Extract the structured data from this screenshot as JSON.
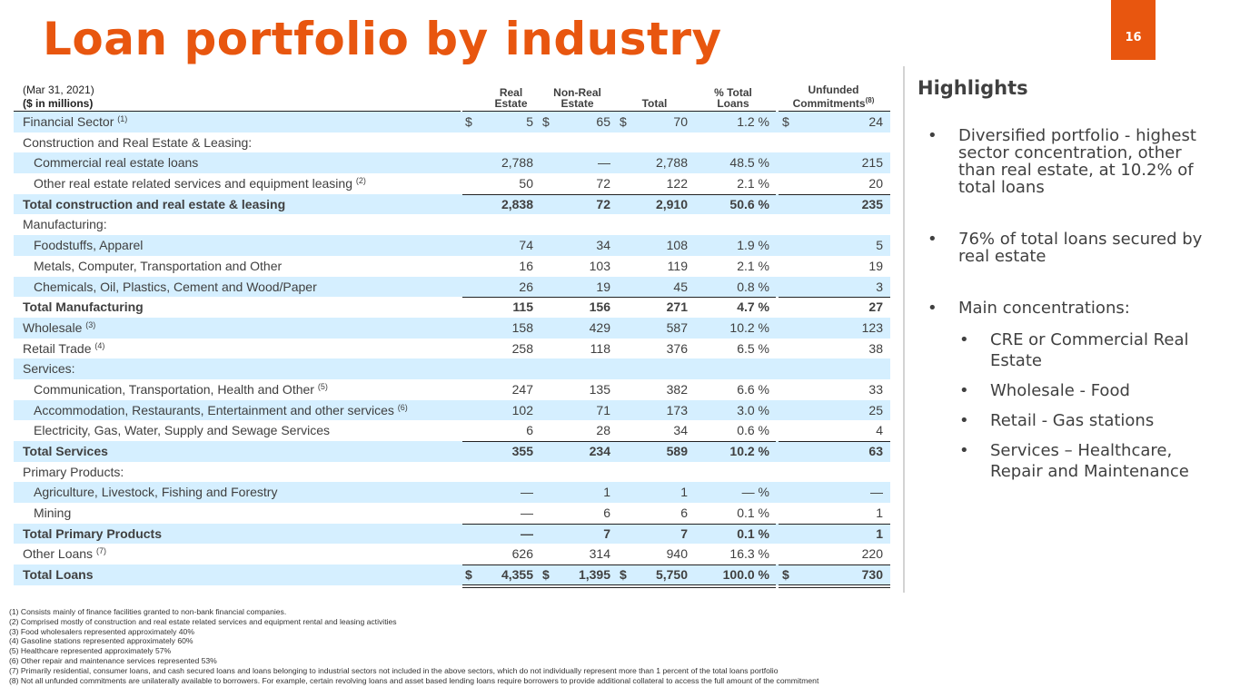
{
  "title": "Loan portfolio by industry",
  "page_number": "16",
  "table": {
    "date": "(Mar 31, 2021)",
    "units": "($ in millions)",
    "columns": {
      "real_estate_1": "Real",
      "real_estate_2": "Estate",
      "non_real_1": "Non-Real",
      "non_real_2": "Estate",
      "total": "Total",
      "pct_1": "% Total",
      "pct_2": "Loans",
      "unfunded_1": "Unfunded",
      "unfunded_2": "Commitments",
      "unfunded_note": "(8)"
    },
    "currency": "$",
    "rows": [
      {
        "label": "Financial Sector",
        "note": "(1)",
        "re": "5",
        "nre": "65",
        "total": "70",
        "pct": "1.2 %",
        "unf": "24",
        "shade": true,
        "dollar": true
      },
      {
        "label": "Construction and Real Estate & Leasing:",
        "shade": false
      },
      {
        "label": "Commercial real estate loans",
        "re": "2,788",
        "nre": "—",
        "total": "2,788",
        "pct": "48.5 %",
        "unf": "215",
        "shade": true,
        "indent": true
      },
      {
        "label": "Other real estate related services and equipment leasing",
        "note": "(2)",
        "re": "50",
        "nre": "72",
        "total": "122",
        "pct": "2.1 %",
        "unf": "20",
        "indent": true
      },
      {
        "label": "Total construction and real estate & leasing",
        "re": "2,838",
        "nre": "72",
        "total": "2,910",
        "pct": "50.6 %",
        "unf": "235",
        "shade": true,
        "bold": true,
        "rule_above": true
      },
      {
        "label": "Manufacturing:"
      },
      {
        "label": "Foodstuffs, Apparel",
        "re": "74",
        "nre": "34",
        "total": "108",
        "pct": "1.9 %",
        "unf": "5",
        "shade": true,
        "indent": true
      },
      {
        "label": "Metals, Computer, Transportation and Other",
        "re": "16",
        "nre": "103",
        "total": "119",
        "pct": "2.1 %",
        "unf": "19",
        "indent": true
      },
      {
        "label": "Chemicals, Oil, Plastics, Cement and Wood/Paper",
        "re": "26",
        "nre": "19",
        "total": "45",
        "pct": "0.8 %",
        "unf": "3",
        "shade": true,
        "indent": true
      },
      {
        "label": "Total Manufacturing",
        "re": "115",
        "nre": "156",
        "total": "271",
        "pct": "4.7 %",
        "unf": "27",
        "bold": true,
        "rule_above": true
      },
      {
        "label": "Wholesale",
        "note": "(3)",
        "re": "158",
        "nre": "429",
        "total": "587",
        "pct": "10.2 %",
        "unf": "123",
        "shade": true
      },
      {
        "label": "Retail Trade",
        "note": "(4)",
        "re": "258",
        "nre": "118",
        "total": "376",
        "pct": "6.5 %",
        "unf": "38"
      },
      {
        "label": "Services:",
        "shade": true
      },
      {
        "label": "Communication, Transportation, Health and Other",
        "note": "(5)",
        "re": "247",
        "nre": "135",
        "total": "382",
        "pct": "6.6 %",
        "unf": "33",
        "indent": true
      },
      {
        "label": "Accommodation, Restaurants, Entertainment and other services",
        "note": "(6)",
        "re": "102",
        "nre": "71",
        "total": "173",
        "pct": "3.0 %",
        "unf": "25",
        "shade": true,
        "indent": true
      },
      {
        "label": "Electricity, Gas, Water, Supply and Sewage Services",
        "re": "6",
        "nre": "28",
        "total": "34",
        "pct": "0.6 %",
        "unf": "4",
        "indent": true
      },
      {
        "label": "Total Services",
        "re": "355",
        "nre": "234",
        "total": "589",
        "pct": "10.2 %",
        "unf": "63",
        "shade": true,
        "bold": true,
        "rule_above": true
      },
      {
        "label": "Primary Products:"
      },
      {
        "label": "Agriculture, Livestock, Fishing and Forestry",
        "re": "—",
        "nre": "1",
        "total": "1",
        "pct": "— %",
        "unf": "—",
        "shade": true,
        "indent": true
      },
      {
        "label": "Mining",
        "re": "—",
        "nre": "6",
        "total": "6",
        "pct": "0.1 %",
        "unf": "1",
        "indent": true
      },
      {
        "label": "Total Primary Products",
        "re": "—",
        "nre": "7",
        "total": "7",
        "pct": "0.1 %",
        "unf": "1",
        "shade": true,
        "bold": true,
        "rule_above": true
      },
      {
        "label": "Other Loans",
        "note": "(7)",
        "re": "626",
        "nre": "314",
        "total": "940",
        "pct": "16.3 %",
        "unf": "220"
      },
      {
        "label": "Total Loans",
        "re": "4,355",
        "nre": "1,395",
        "total": "5,750",
        "pct": "100.0 %",
        "unf": "730",
        "shade": true,
        "bold": true,
        "dollar": true,
        "rule_above": true,
        "double_below": true
      }
    ]
  },
  "highlights": {
    "title": "Highlights",
    "bullets": [
      {
        "text": "Diversified portfolio - highest sector concentration, other than real estate, at 10.2% of total loans",
        "level": 1
      },
      {
        "text": "76% of total loans secured by real estate",
        "level": 1
      },
      {
        "text": "Main concentrations:",
        "level": 1
      },
      {
        "text": "CRE or Commercial Real Estate",
        "level": 2
      },
      {
        "text": "Wholesale - Food",
        "level": 2
      },
      {
        "text": "Retail - Gas stations",
        "level": 2
      },
      {
        "text": "Services – Healthcare, Repair and Maintenance",
        "level": 2
      }
    ]
  },
  "footnotes": [
    "(1) Consists mainly of finance facilities granted to non-bank financial companies.",
    "(2) Comprised mostly of construction and real estate related services and equipment rental and leasing activities",
    "(3) Food wholesalers represented approximately 40%",
    "(4) Gasoline stations represented approximately 60%",
    "(5) Healthcare represented approximately 57%",
    "(6) Other repair and maintenance services represented 53%",
    "(7) Primarily residential, consumer loans, and cash secured loans and loans belonging to industrial sectors not included in the above sectors, which do not individually represent more than 1 percent of the total loans portfolio",
    "(8) Not all unfunded commitments are unilaterally available to borrowers. For example, certain revolving loans and asset based lending loans require borrowers to provide additional collateral to access the full amount of the commitment"
  ]
}
